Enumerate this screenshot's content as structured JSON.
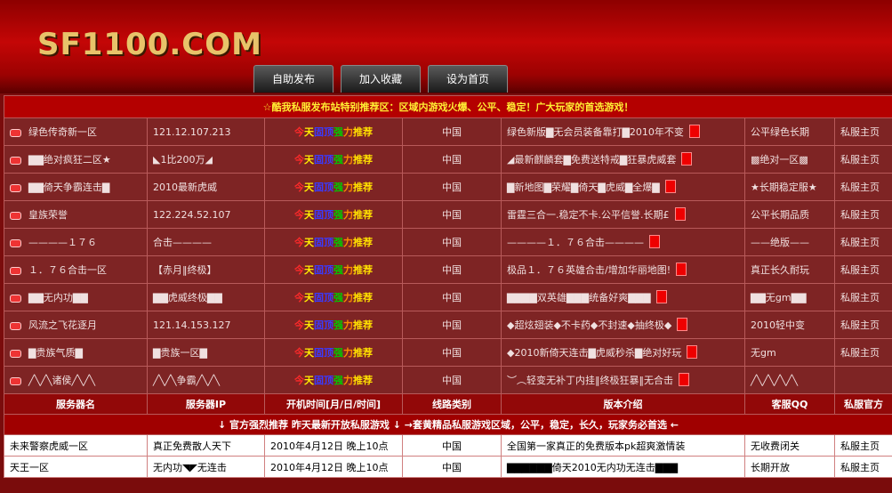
{
  "header": {
    "logo": "SF1100.COM",
    "nav": [
      "自助发布",
      "加入收藏",
      "设为首页"
    ]
  },
  "banner": "☆酷我私服发布站特别推荐区：区域内游戏火爆、公平、稳定！广大玩家的首选游戏！",
  "featured": [
    {
      "name": "绿色传奇新一区",
      "ip": "121.12.107.213",
      "time": [
        "今",
        "天",
        "固顶",
        "强",
        "力",
        "推荐"
      ],
      "line": "中国",
      "intro": "绿色新版▇无会员装备靠打▇2010年不变",
      "qq": "公平绿色长期",
      "home": "私服主页"
    },
    {
      "name": "▇▇绝对疯狂二区★",
      "ip": "◣1比200万◢",
      "time": [
        "今",
        "天",
        "固顶",
        "强",
        "力",
        "推荐"
      ],
      "line": "中国",
      "intro": "◢最新麒麟套▇免费送特戒▇狂暴虎威套",
      "qq": "▩绝对一区▩",
      "home": "私服主页"
    },
    {
      "name": "▇▇倚天争霸连击▇",
      "ip": "2010最新虎威",
      "time": [
        "今",
        "天",
        "固顶",
        "强",
        "力",
        "推荐"
      ],
      "line": "中国",
      "intro": "▇新地图▇荣耀▇倚天▇虎威▇全爆▇",
      "qq": "★长期稳定服★",
      "home": "私服主页"
    },
    {
      "name": "皇族荣誉",
      "ip": "122.224.52.107",
      "time": [
        "今",
        "天",
        "固顶",
        "强",
        "力",
        "推荐"
      ],
      "line": "中国",
      "intro": "雷霆三合一.稳定不卡.公平信誉.长期£",
      "qq": "公平长期品质",
      "home": "私服主页"
    },
    {
      "name": "————１７６",
      "ip": "合击————",
      "time": [
        "今",
        "天",
        "固顶",
        "强",
        "力",
        "推荐"
      ],
      "line": "中国",
      "intro": "————１．７６合击————",
      "qq": "——绝版——",
      "home": "私服主页"
    },
    {
      "name": "１．７６合击一区",
      "ip": "【赤月‖终极】",
      "time": [
        "今",
        "天",
        "固顶",
        "强",
        "力",
        "推荐"
      ],
      "line": "中国",
      "intro": "极品１．７６英雄合击/增加华丽地图!",
      "qq": "真正长久耐玩",
      "home": "私服主页"
    },
    {
      "name": "▇▇无内功▇▇",
      "ip": "▇▇虎威终极▇▇",
      "time": [
        "今",
        "天",
        "固顶",
        "强",
        "力",
        "推荐"
      ],
      "line": "中国",
      "intro": "▇▇▇▇双英雄▇▇▇统备好爽▇▇▇",
      "qq": "▇▇无gm▇▇",
      "home": "私服主页"
    },
    {
      "name": "风流之飞花逐月",
      "ip": "121.14.153.127",
      "time": [
        "今",
        "天",
        "固顶",
        "强",
        "力",
        "推荐"
      ],
      "line": "中国",
      "intro": "◆超炫翅装◆不卡药◆不封速◆抽终极◆",
      "qq": "2010轻中变",
      "home": "私服主页"
    },
    {
      "name": "▇贵族气质▇",
      "ip": "▇贵族一区▇",
      "time": [
        "今",
        "天",
        "固顶",
        "强",
        "力",
        "推荐"
      ],
      "line": "中国",
      "intro": "◆2010新倚天连击▇虎威秒杀▇绝对好玩",
      "qq": "无gm",
      "home": "私服主页"
    },
    {
      "name": "╱╲╱╲诸侯╱╲╱╲",
      "ip": "╱╲╱╲争霸╱╲╱╲",
      "time": [
        "今",
        "天",
        "固顶",
        "强",
        "力",
        "推荐"
      ],
      "line": "中国",
      "intro": "︶︵轻变无补丁内挂‖终极狂暴‖无合击",
      "qq": "╱╲╱╲╱╲╱╲"
    }
  ],
  "columns": [
    "服务器名",
    "服务器IP",
    "开机时间[月/日/时间]",
    "线路类别",
    "版本介绍",
    "客服QQ",
    "私服官方"
  ],
  "banner2": "↓ 官方强烈推荐 昨天最新开放私服游戏 ↓ →套黄精品私服游戏区域，公平，稳定，长久，玩家务必首选 ←",
  "listing": [
    [
      "未来警察虎威一区",
      "真正免费散人天下",
      "2010年4月12日 晚上10点",
      "中国",
      "全国第一家真正的免费版本pk超爽激情装",
      "无收费闭关",
      "私服主页"
    ],
    [
      "天王一区",
      "无内功◥◤无连击",
      "2010年4月12日 晚上10点",
      "中国",
      "▇▇▇▇▇▇倚天2010无内功无连击▇▇▇",
      "长期开放",
      "私服主页"
    ]
  ]
}
